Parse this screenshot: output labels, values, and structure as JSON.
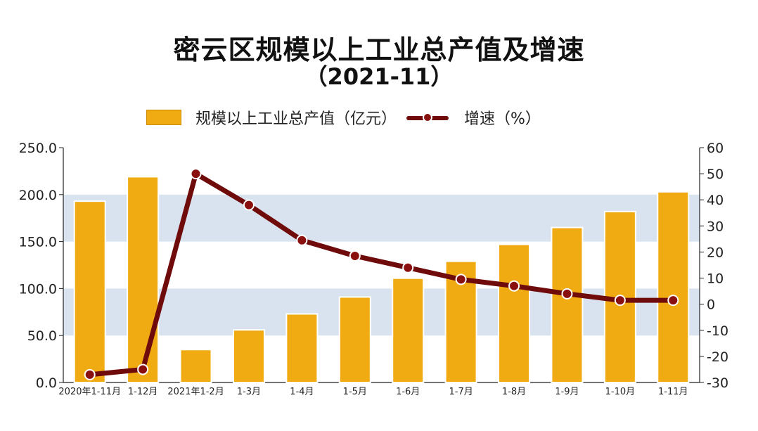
{
  "title": "密云区规模以上工业总产值及增速",
  "subtitle": "（2021-11）",
  "legend": {
    "bar_label": "规模以上工业总产值（亿元）",
    "line_label": "增速（%）"
  },
  "colors": {
    "bar": "#f0ab12",
    "bar_border": "#c98a00",
    "line": "#700b0b",
    "band": "#d9e3ef"
  },
  "chart_data": {
    "type": "bar",
    "title": "密云区规模以上工业总产值及增速",
    "subtitle": "（2021-11）",
    "categories": [
      "2020年1-11月",
      "1-12月",
      "2021年1-2月",
      "1-3月",
      "1-4月",
      "1-5月",
      "1-6月",
      "1-7月",
      "1-8月",
      "1-9月",
      "1-10月",
      "1-11月"
    ],
    "series": [
      {
        "name": "规模以上工业总产值（亿元）",
        "type": "bar",
        "axis": "left",
        "values": [
          193,
          219,
          35,
          56,
          73,
          91,
          111,
          129,
          147,
          165,
          182,
          203
        ]
      },
      {
        "name": "增速（%）",
        "type": "line",
        "axis": "right",
        "values": [
          -27,
          -25,
          50,
          38,
          24.5,
          18.5,
          14,
          9.5,
          7,
          4,
          1.5,
          1.5
        ]
      }
    ],
    "ylim": [
      0,
      250
    ],
    "y2lim": [
      -30,
      60
    ],
    "yticks": [
      "0.0",
      "50.0",
      "100.0",
      "150.0",
      "200.0",
      "250.0"
    ],
    "y2ticks": [
      "-30",
      "-20",
      "-10",
      "0",
      "10",
      "20",
      "30",
      "40",
      "50",
      "60"
    ],
    "grid": "alternating horizontal bands",
    "legend_position": "top"
  }
}
